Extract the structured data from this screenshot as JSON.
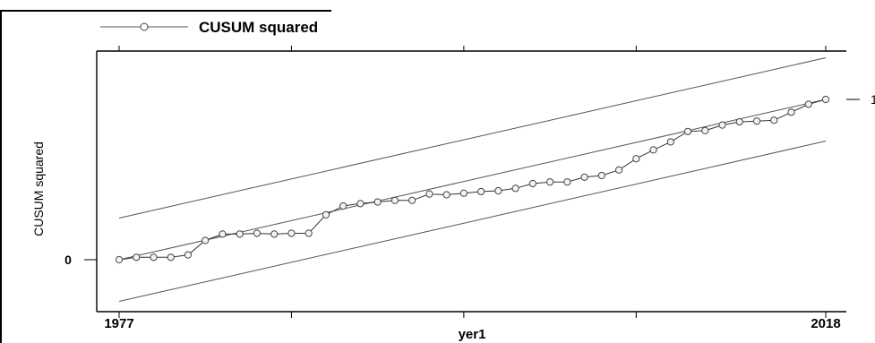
{
  "chart_data": {
    "type": "line",
    "ylabel": "CUSUM squared",
    "xlabel": "yer1",
    "xlim": [
      1977,
      2018
    ],
    "ylim": [
      -0.25,
      1.25
    ],
    "x_ticks": [
      1977,
      1987,
      1997,
      2007,
      2018
    ],
    "x_tick_labels": [
      "1977",
      "",
      "yer1",
      "",
      "2018"
    ],
    "y_ticks": [
      0,
      1
    ],
    "y_tick_labels": [
      "0",
      "1"
    ],
    "legend": {
      "position": "top-left",
      "label": "CUSUM squared"
    },
    "grid": false,
    "series": [
      {
        "name": "CUSUM squared",
        "marker": "circle",
        "x": [
          1977,
          1978,
          1979,
          1980,
          1981,
          1982,
          1983,
          1984,
          1985,
          1986,
          1987,
          1988,
          1989,
          1990,
          1991,
          1992,
          1993,
          1994,
          1995,
          1996,
          1997,
          1998,
          1999,
          2000,
          2001,
          2002,
          2003,
          2004,
          2005,
          2006,
          2007,
          2008,
          2009,
          2010,
          2011,
          2012,
          2013,
          2014,
          2015,
          2016,
          2017,
          2018
        ],
        "values": [
          0.0,
          0.015,
          0.015,
          0.015,
          0.03,
          0.12,
          0.16,
          0.16,
          0.165,
          0.16,
          0.165,
          0.165,
          0.28,
          0.335,
          0.35,
          0.36,
          0.37,
          0.37,
          0.41,
          0.405,
          0.415,
          0.425,
          0.43,
          0.445,
          0.475,
          0.485,
          0.485,
          0.515,
          0.525,
          0.56,
          0.63,
          0.685,
          0.735,
          0.8,
          0.805,
          0.84,
          0.86,
          0.865,
          0.87,
          0.92,
          0.97,
          1.0
        ]
      },
      {
        "name": "",
        "role": "expected-line",
        "x": [
          1977,
          2018
        ],
        "values": [
          0.0,
          1.0
        ]
      },
      {
        "name": "",
        "role": "upper-bound",
        "x": [
          1977,
          2018
        ],
        "values": [
          0.26,
          1.26
        ]
      },
      {
        "name": "",
        "role": "lower-bound",
        "x": [
          1977,
          2018
        ],
        "values": [
          -0.26,
          0.74
        ]
      }
    ]
  }
}
